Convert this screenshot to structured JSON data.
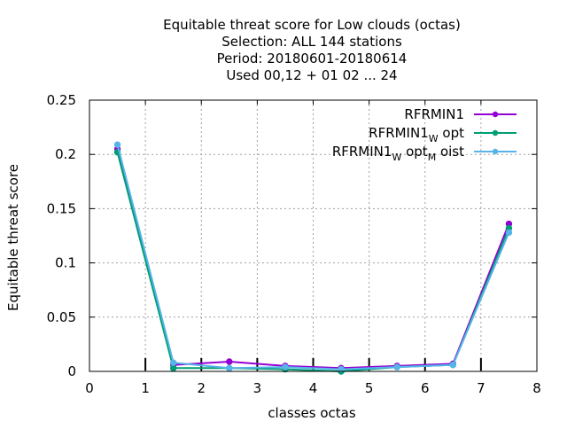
{
  "chart_data": {
    "type": "line",
    "title_lines": [
      "Equitable threat score  for Low clouds (octas)",
      "Selection: ALL    144 stations",
      "Period: 20180601-20180614",
      "Used  00,12  + 01 02 ... 24"
    ],
    "xlabel": "classes octas",
    "ylabel": "Equitable threat score",
    "xlim": [
      0,
      8
    ],
    "ylim": [
      0,
      0.25
    ],
    "xticks": [
      "0",
      "1",
      "2",
      "3",
      "4",
      "5",
      "6",
      "7",
      "8"
    ],
    "yticks": [
      "0",
      "0.05",
      "0.1",
      "0.15",
      "0.2",
      "0.25"
    ],
    "grid": true,
    "legend_position": "top-right",
    "x": [
      0.5,
      1.5,
      2.5,
      3.5,
      4.5,
      5.5,
      6.5,
      7.5
    ],
    "series": [
      {
        "name_main": "RFRMIN1",
        "name_parts": [],
        "color": "#9400d3",
        "values": [
          0.205,
          0.006,
          0.009,
          0.005,
          0.003,
          0.005,
          0.007,
          0.136
        ]
      },
      {
        "name_main": "RFRMIN1",
        "name_parts": [
          "W",
          "opt"
        ],
        "color": "#009e73",
        "values": [
          0.202,
          0.003,
          0.003,
          0.002,
          0.0,
          0.004,
          0.006,
          0.132
        ]
      },
      {
        "name_main": "RFRMIN1",
        "name_parts": [
          "W",
          "opt",
          "M",
          "oist"
        ],
        "color": "#56b4e9",
        "values": [
          0.209,
          0.008,
          0.003,
          0.004,
          0.002,
          0.004,
          0.006,
          0.128
        ]
      }
    ],
    "minor_tick_marks_x": [
      1,
      2,
      3,
      4,
      5,
      6,
      7
    ]
  }
}
